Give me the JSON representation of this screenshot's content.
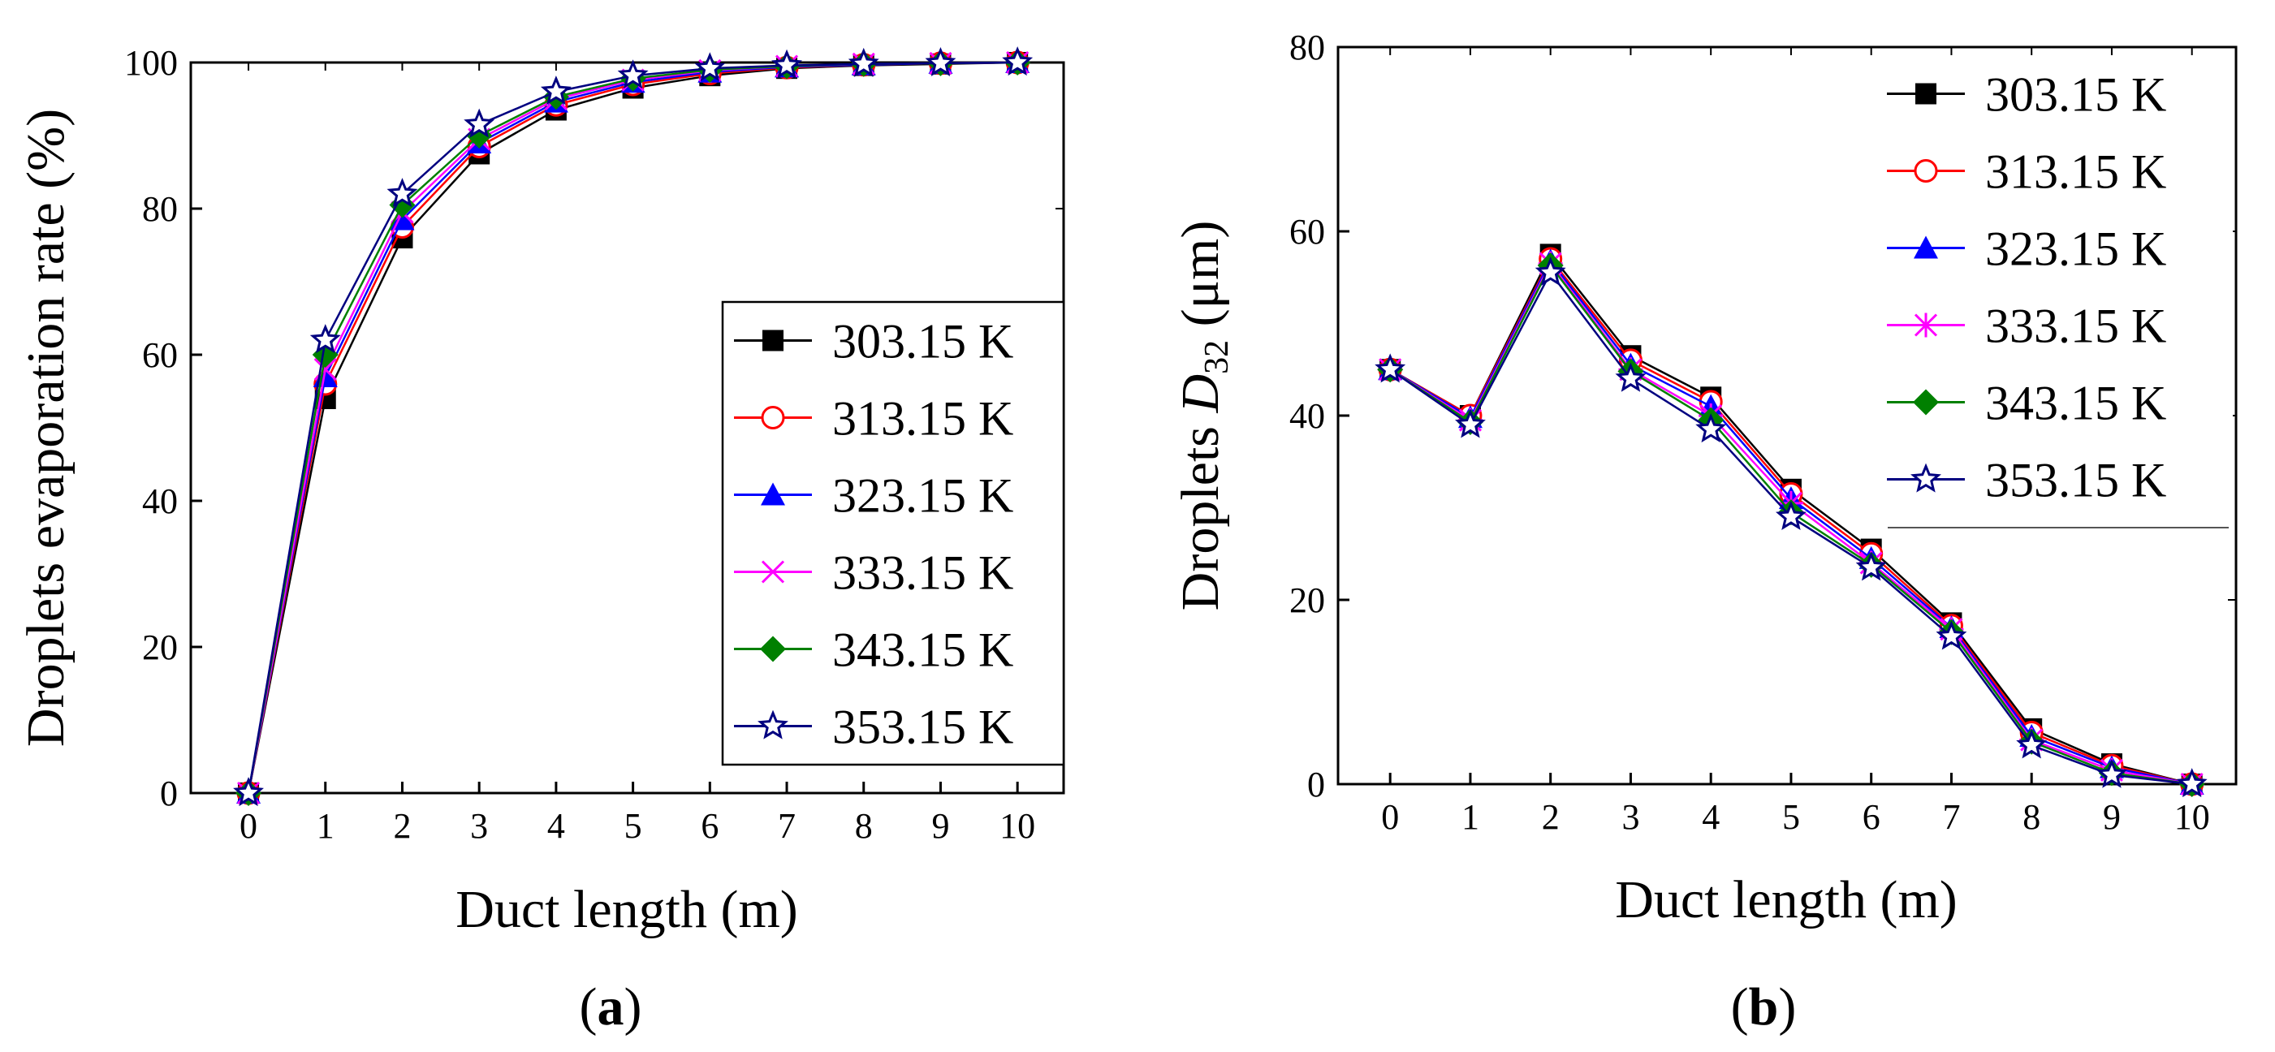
{
  "colors": {
    "303.15 K": "#000000",
    "313.15 K": "#ff0000",
    "323.15 K": "#0000ff",
    "333.15 K": "#ff00ff",
    "343.15 K": "#008000",
    "353.15 K": "#000080"
  },
  "chart_data": [
    {
      "type": "line",
      "panel": "a",
      "caption": {
        "open": "(",
        "letter": "a",
        "close": ")"
      },
      "xlabel": "Duct length (m)",
      "ylabel": "Droplets evaporation rate (%)",
      "xlim": [
        -0.75,
        10.6
      ],
      "ylim": [
        0,
        100
      ],
      "xticks": [
        0,
        1,
        2,
        3,
        4,
        5,
        6,
        7,
        8,
        9,
        10
      ],
      "yticks": [
        0,
        20,
        40,
        60,
        80,
        100
      ],
      "legend_position": "lower-right",
      "x": [
        0,
        1,
        2,
        3,
        4,
        5,
        6,
        7,
        8,
        9,
        10
      ],
      "series": [
        {
          "name": "303.15 K",
          "marker": "square",
          "values": [
            0,
            54,
            76,
            87.5,
            93.5,
            96.5,
            98.2,
            99.2,
            99.6,
            99.8,
            100
          ]
        },
        {
          "name": "313.15 K",
          "marker": "circle",
          "values": [
            0,
            56,
            77.5,
            88.5,
            94.2,
            97,
            98.5,
            99.3,
            99.7,
            99.9,
            100
          ]
        },
        {
          "name": "323.15 K",
          "marker": "triangle",
          "values": [
            0,
            57,
            78.5,
            89,
            94.6,
            97.3,
            98.7,
            99.4,
            99.7,
            99.9,
            100
          ]
        },
        {
          "name": "333.15 K",
          "marker": "x",
          "values": [
            0,
            58,
            79.5,
            89.5,
            95,
            97.6,
            98.9,
            99.5,
            99.8,
            99.9,
            100
          ]
        },
        {
          "name": "343.15 K",
          "marker": "diamond",
          "values": [
            0,
            60,
            80.5,
            90,
            95.3,
            97.8,
            99,
            99.5,
            99.8,
            99.9,
            100
          ]
        },
        {
          "name": "353.15 K",
          "marker": "star",
          "values": [
            0,
            62,
            82,
            91.5,
            96,
            98.2,
            99.2,
            99.6,
            99.8,
            99.9,
            100
          ]
        }
      ]
    },
    {
      "type": "line",
      "panel": "b",
      "caption": {
        "open": "(",
        "letter": "b",
        "close": ")"
      },
      "xlabel": "Duct length (m)",
      "ylabel_prefix": "Droplets ",
      "ylabel_symbol": "D",
      "ylabel_subscript": "32",
      "ylabel_unit": " (μm)",
      "xlim": [
        -0.65,
        10.55
      ],
      "ylim": [
        0,
        80
      ],
      "xticks": [
        0,
        1,
        2,
        3,
        4,
        5,
        6,
        7,
        8,
        9,
        10
      ],
      "yticks": [
        0,
        20,
        40,
        60,
        80
      ],
      "legend_position": "upper-right",
      "x": [
        0,
        1,
        2,
        3,
        4,
        5,
        6,
        7,
        8,
        9,
        10
      ],
      "series": [
        {
          "name": "303.15 K",
          "marker": "square",
          "values": [
            45,
            40,
            57.5,
            46.5,
            42,
            32,
            25.5,
            17.5,
            6,
            2.2,
            0
          ]
        },
        {
          "name": "313.15 K",
          "marker": "circle",
          "values": [
            45,
            40,
            57,
            46,
            41.5,
            31.5,
            25,
            17.2,
            5.6,
            2,
            0
          ]
        },
        {
          "name": "323.15 K",
          "marker": "triangle",
          "values": [
            45,
            39.8,
            56.8,
            45.5,
            41,
            31,
            24.5,
            17,
            5.2,
            1.8,
            0
          ]
        },
        {
          "name": "333.15 K",
          "marker": "asterisk",
          "values": [
            45,
            39.5,
            56.5,
            45,
            40,
            30.5,
            24,
            16.8,
            4.8,
            1.5,
            0
          ]
        },
        {
          "name": "343.15 K",
          "marker": "diamond",
          "values": [
            45,
            39.3,
            56.3,
            44.8,
            39.5,
            29.5,
            23.8,
            16.5,
            4.6,
            1.2,
            0
          ]
        },
        {
          "name": "353.15 K",
          "marker": "star",
          "values": [
            45,
            39,
            55.5,
            44,
            38.5,
            29,
            23.5,
            16,
            4.2,
            1,
            0
          ]
        }
      ]
    }
  ]
}
